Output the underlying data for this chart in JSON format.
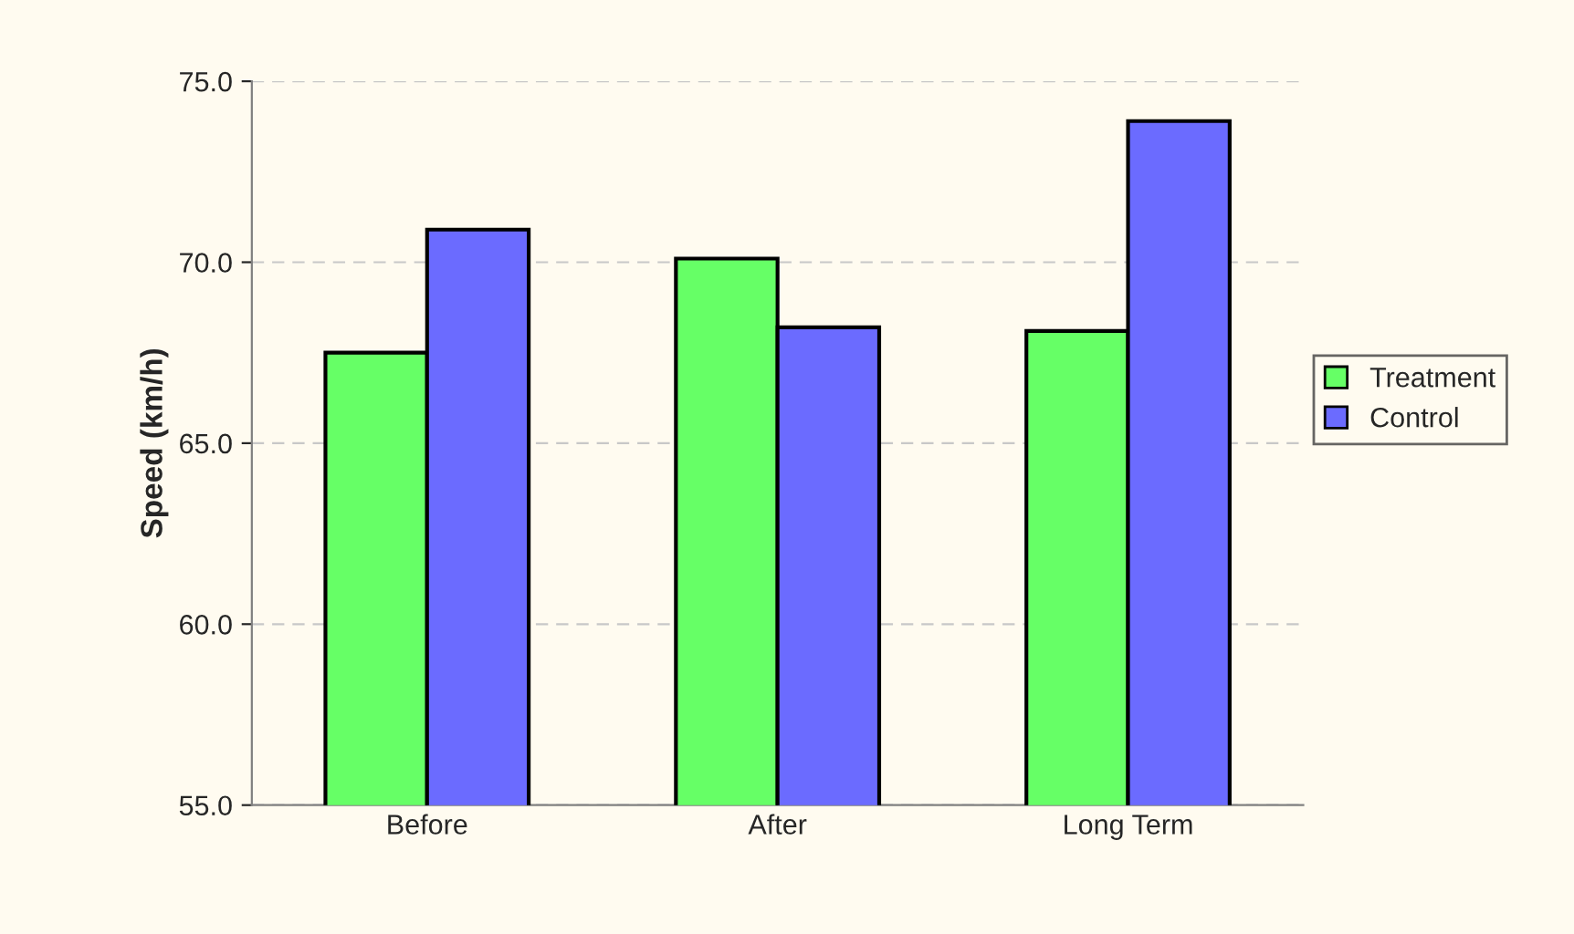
{
  "chart_data": {
    "type": "bar",
    "ylabel": "Speed (km/h)",
    "categories": [
      "Before",
      "After",
      "Long Term"
    ],
    "series": [
      {
        "name": "Treatment",
        "color": "#66ff66",
        "values": [
          67.5,
          70.1,
          68.1
        ]
      },
      {
        "name": "Control",
        "color": "#6b6bff",
        "values": [
          70.9,
          68.2,
          73.9
        ]
      }
    ],
    "ylim": [
      55,
      75
    ],
    "yticks": [
      {
        "value": 55,
        "label": "55.0"
      },
      {
        "value": 60,
        "label": "60.0"
      },
      {
        "value": 65,
        "label": "65.0"
      },
      {
        "value": 70,
        "label": "70.0"
      },
      {
        "value": 75,
        "label": "75.0"
      }
    ],
    "grid": "y",
    "legend": "right"
  }
}
